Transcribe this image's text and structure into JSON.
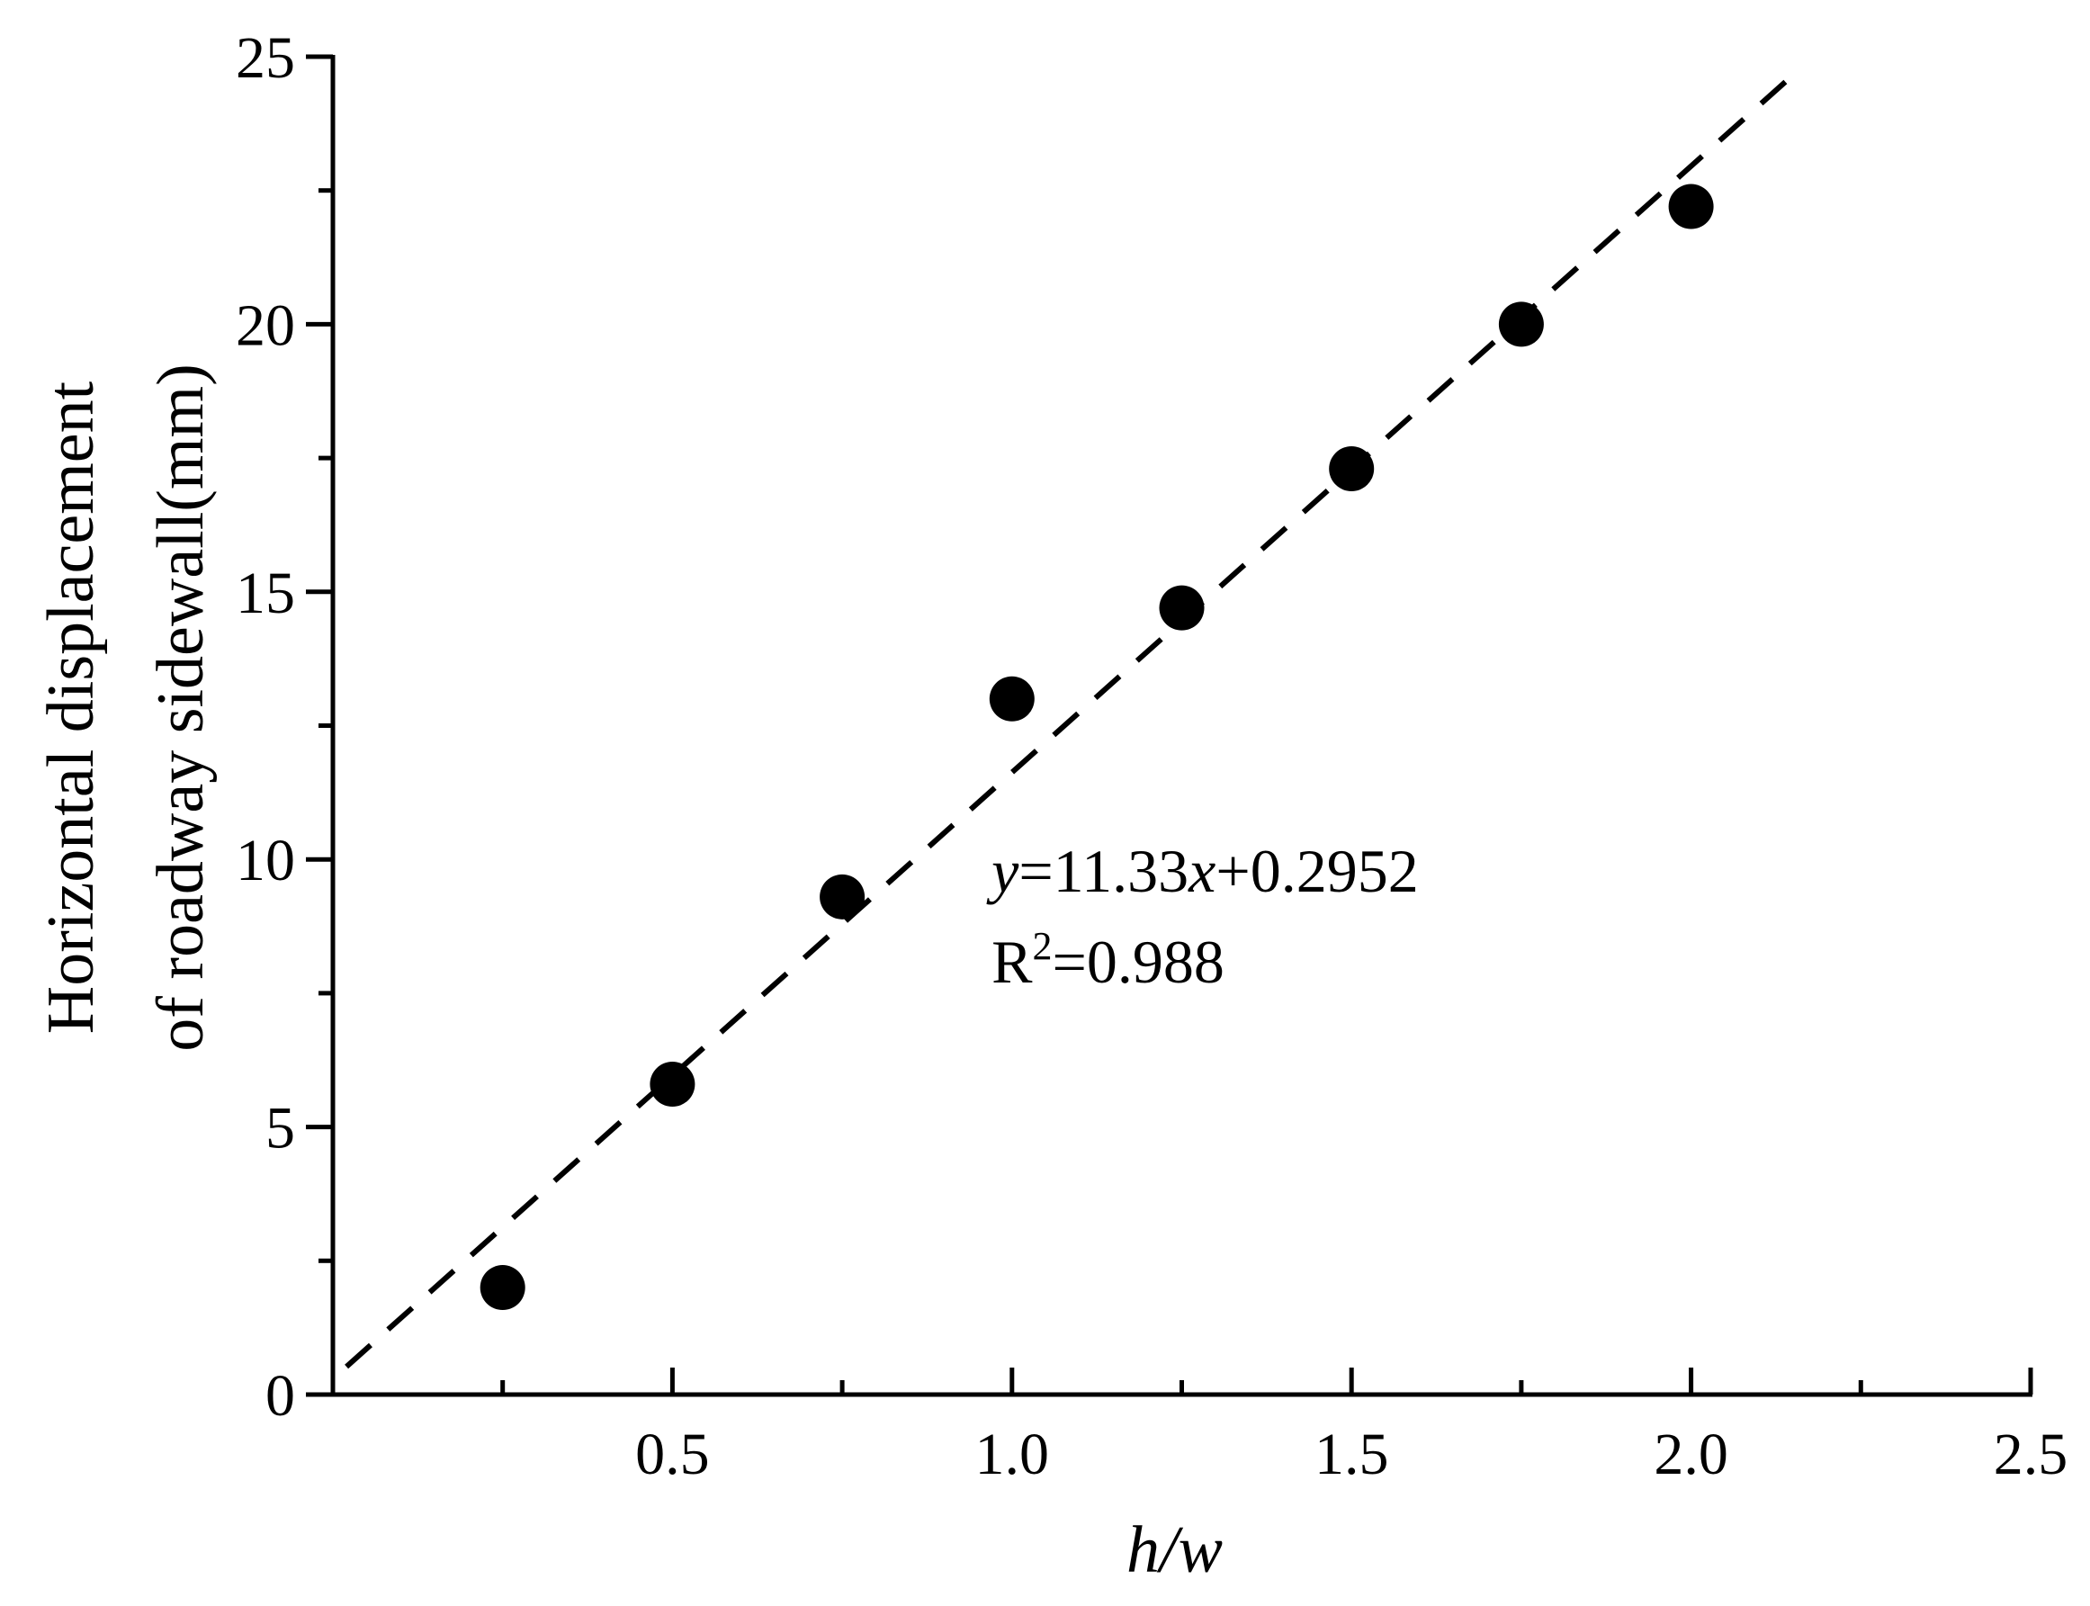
{
  "chart_data": {
    "type": "scatter",
    "title": "",
    "xlabel": "h/w",
    "ylabel_lines": [
      "Horizontal displacement",
      "of  roadway sidewall(mm)"
    ],
    "xlim": [
      0,
      2.5
    ],
    "ylim": [
      0,
      25
    ],
    "x_ticks": [
      0.5,
      1.0,
      1.5,
      2.0,
      2.5
    ],
    "x_tick_labels": [
      "0.5",
      "1.0",
      "1.5",
      "2.0",
      "2.5"
    ],
    "x_minor_ticks": [
      0.25,
      0.75,
      1.25,
      1.75,
      2.25
    ],
    "y_ticks": [
      0,
      5,
      10,
      15,
      20,
      25
    ],
    "y_tick_labels": [
      "0",
      "5",
      "10",
      "15",
      "20",
      "25"
    ],
    "y_minor_ticks": [
      2.5,
      7.5,
      12.5,
      17.5,
      22.5
    ],
    "grid": false,
    "series": [
      {
        "x": [
          0.25,
          0.5,
          0.75,
          1.0,
          1.25,
          1.5,
          1.75,
          2.0
        ],
        "y": [
          2.0,
          5.8,
          9.3,
          13.0,
          14.7,
          17.3,
          20.0,
          22.2
        ],
        "color": "#000000",
        "marker": "circle"
      }
    ],
    "fit": {
      "slope": 11.33,
      "intercept": 0.2952,
      "x_range": [
        0.02,
        2.16
      ],
      "style": "dashed"
    },
    "annotations": {
      "equation": {
        "y_var": "y",
        "equals_slope": "=11.33",
        "x_var": "x",
        "plus_intercept": "+0.2952"
      },
      "r_squared": {
        "r": "R",
        "sup": "2",
        "value": "=0.988"
      }
    }
  }
}
